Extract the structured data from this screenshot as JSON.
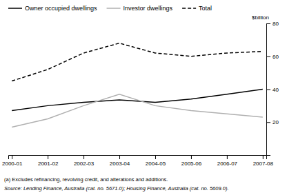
{
  "chart_data": {
    "type": "line",
    "categories": [
      "2000-01",
      "2001-02",
      "2002-03",
      "2003-04",
      "2004-05",
      "2005-06",
      "2006-07",
      "2007-08"
    ],
    "series": [
      {
        "name": "Owner occupied dwellings",
        "color": "#000000",
        "line_style": "solid",
        "values": [
          27,
          30,
          32,
          33.5,
          32,
          34,
          37,
          40
        ]
      },
      {
        "name": "Investor dwellings",
        "color": "#b0b0b0",
        "line_style": "solid",
        "values": [
          17,
          22,
          30,
          37,
          30,
          27,
          25,
          23
        ]
      },
      {
        "name": "Total",
        "color": "#000000",
        "line_style": "dashed",
        "values": [
          45,
          52,
          62,
          68,
          62,
          60,
          62,
          63
        ]
      }
    ],
    "ylim": [
      0,
      80
    ],
    "yticks": [
      20,
      40,
      60,
      80
    ],
    "y_label": "$billion",
    "legend": "upper left",
    "grid": false,
    "annotations": [
      "(a) Excludes refinancing, revolving credit, and alterations and additions.",
      "Source: Lending Finance, Australia (cat. no. 5671.0); Housing Finance, Australia (cat. no. 5609.0)."
    ]
  }
}
